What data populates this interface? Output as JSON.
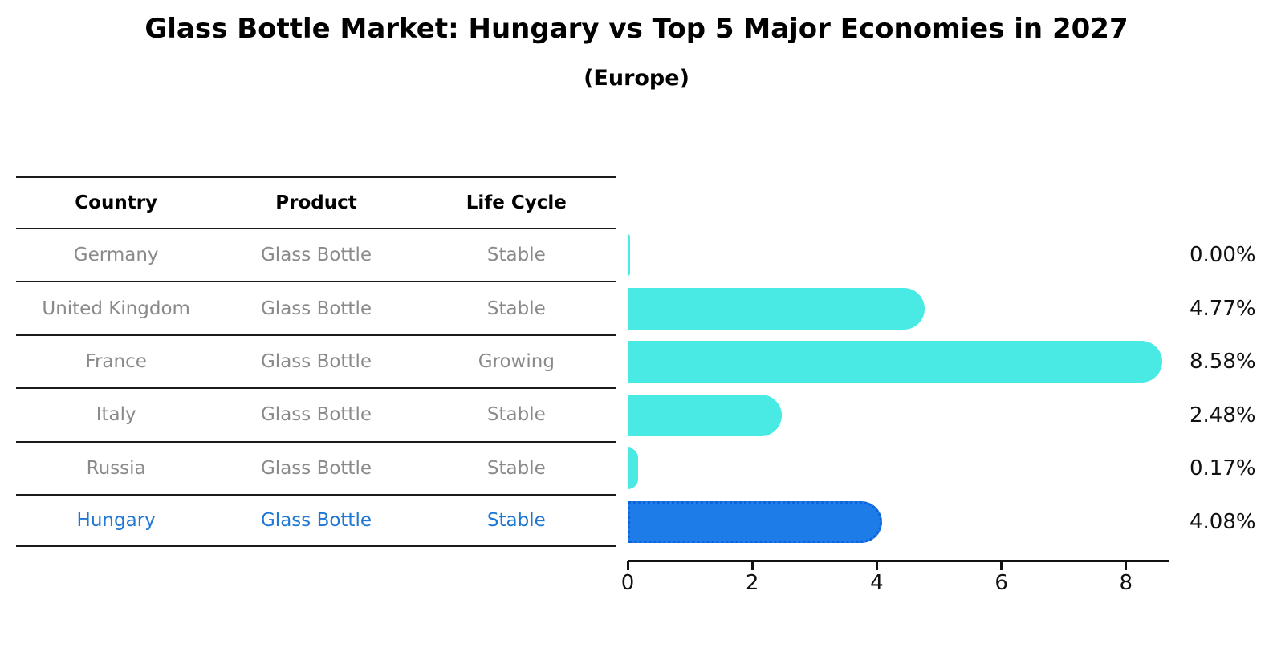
{
  "title": "Glass Bottle Market: Hungary vs Top 5 Major Economies in 2027",
  "subtitle": "(Europe)",
  "table": {
    "headers": [
      "Country",
      "Product",
      "Life Cycle"
    ],
    "rows": [
      {
        "country": "Germany",
        "product": "Glass Bottle",
        "life_cycle": "Stable",
        "highlight": false
      },
      {
        "country": "United Kingdom",
        "product": "Glass Bottle",
        "life_cycle": "Stable",
        "highlight": false
      },
      {
        "country": "France",
        "product": "Glass Bottle",
        "life_cycle": "Growing",
        "highlight": false
      },
      {
        "country": "Italy",
        "product": "Glass Bottle",
        "life_cycle": "Stable",
        "highlight": false
      },
      {
        "country": "Russia",
        "product": "Glass Bottle",
        "life_cycle": "Stable",
        "highlight": false
      },
      {
        "country": "Hungary",
        "product": "Glass Bottle",
        "life_cycle": "Stable",
        "highlight": true
      }
    ]
  },
  "chart_data": {
    "type": "bar",
    "orientation": "horizontal",
    "title": "Glass Bottle Market: Hungary vs Top 5 Major Economies in 2027",
    "subtitle": "(Europe)",
    "categories": [
      "Germany",
      "United Kingdom",
      "France",
      "Italy",
      "Russia",
      "Hungary"
    ],
    "values": [
      0.0,
      4.77,
      8.58,
      2.48,
      0.17,
      4.08
    ],
    "value_labels": [
      "0.00%",
      "4.77%",
      "8.58%",
      "2.48%",
      "0.17%",
      "4.08%"
    ],
    "unit": "%",
    "x_ticks": [
      0,
      2,
      4,
      6,
      8
    ],
    "xlim": [
      0,
      8.7
    ],
    "grid": false,
    "legend": false,
    "bar_color": "#49EAE4",
    "highlight_color": "#1E7CE8",
    "highlight_index": 5
  },
  "colors": {
    "title_text": "#000000",
    "row_text": "#8A8A8A",
    "highlight_text": "#1E77D2",
    "axis": "#111111",
    "bar_cyan": "#49EAE4",
    "bar_blue": "#1E7CE8"
  }
}
